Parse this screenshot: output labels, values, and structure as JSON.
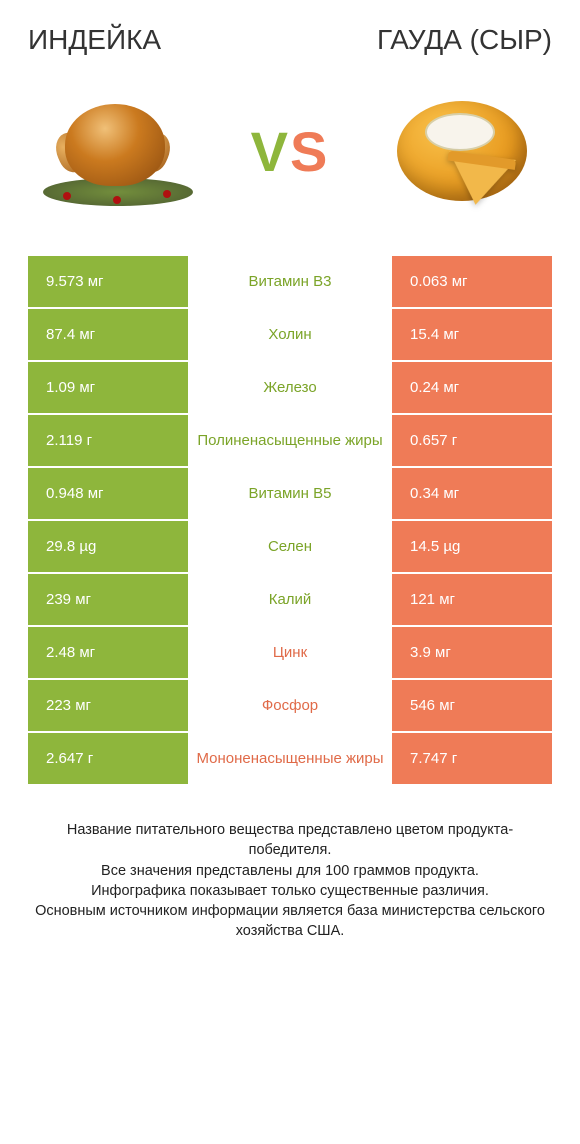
{
  "colors": {
    "green": "#8eb63c",
    "orange": "#ef7b57",
    "vs_v": "#8eb63c",
    "vs_s": "#ef7b57",
    "text_green": "#7ba428",
    "text_orange": "#e06a48",
    "white": "#ffffff"
  },
  "header": {
    "left": "ИНДЕЙКА",
    "right": "ГАУДА (СЫР)"
  },
  "vs": {
    "v": "V",
    "s": "S"
  },
  "rows": [
    {
      "left": "9.573 мг",
      "mid": "Витамин B3",
      "right": "0.063 мг",
      "winner": "left"
    },
    {
      "left": "87.4 мг",
      "mid": "Холин",
      "right": "15.4 мг",
      "winner": "left"
    },
    {
      "left": "1.09 мг",
      "mid": "Железо",
      "right": "0.24 мг",
      "winner": "left"
    },
    {
      "left": "2.119 г",
      "mid": "Полиненасыщенные жиры",
      "right": "0.657 г",
      "winner": "left"
    },
    {
      "left": "0.948 мг",
      "mid": "Витамин B5",
      "right": "0.34 мг",
      "winner": "left"
    },
    {
      "left": "29.8 µg",
      "mid": "Селен",
      "right": "14.5 µg",
      "winner": "left"
    },
    {
      "left": "239 мг",
      "mid": "Калий",
      "right": "121 мг",
      "winner": "left"
    },
    {
      "left": "2.48 мг",
      "mid": "Цинк",
      "right": "3.9 мг",
      "winner": "right"
    },
    {
      "left": "223 мг",
      "mid": "Фосфор",
      "right": "546 мг",
      "winner": "right"
    },
    {
      "left": "2.647 г",
      "mid": "Мононенасыщенные жиры",
      "right": "7.747 г",
      "winner": "right"
    }
  ],
  "footnote": "Название питательного вещества представлено цветом продукта-победителя.\nВсе значения представлены для 100 граммов продукта.\nИнфографика показывает только существенные различия.\nОсновным источником информации является база министерства сельского хозяйства США."
}
